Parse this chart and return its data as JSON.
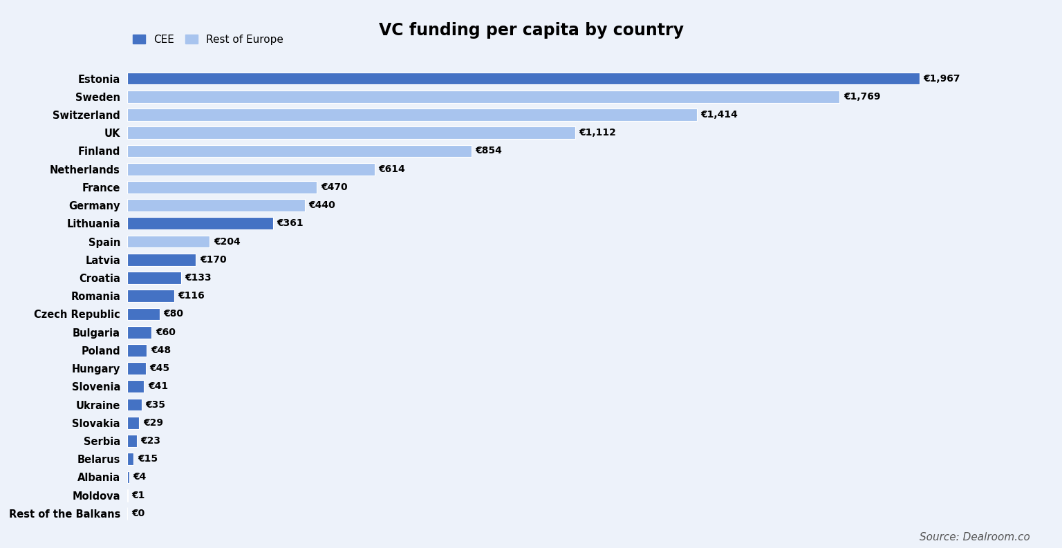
{
  "title": "VC funding per capita by country",
  "source": "Source: Dealroom.co",
  "legend_cee": "CEE",
  "legend_rest": "Rest of Europe",
  "color_cee": "#4472C4",
  "color_rest": "#A8C4EE",
  "background_color": "#EDF2FA",
  "countries": [
    "Estonia",
    "Sweden",
    "Switzerland",
    "UK",
    "Finland",
    "Netherlands",
    "France",
    "Germany",
    "Lithuania",
    "Spain",
    "Latvia",
    "Croatia",
    "Romania",
    "Czech Republic",
    "Bulgaria",
    "Poland",
    "Hungary",
    "Slovenia",
    "Ukraine",
    "Slovakia",
    "Serbia",
    "Belarus",
    "Albania",
    "Moldova",
    "Rest of the Balkans"
  ],
  "values": [
    1967,
    1769,
    1414,
    1112,
    854,
    614,
    470,
    440,
    361,
    204,
    170,
    133,
    116,
    80,
    60,
    48,
    45,
    41,
    35,
    29,
    23,
    15,
    4,
    1,
    0
  ],
  "is_cee": [
    true,
    false,
    false,
    false,
    false,
    false,
    false,
    false,
    true,
    false,
    true,
    true,
    true,
    true,
    true,
    true,
    true,
    true,
    true,
    true,
    true,
    true,
    true,
    true,
    true
  ],
  "labels": [
    "€1,967",
    "€1,769",
    "€1,414",
    "€1,112",
    "€854",
    "€614",
    "€470",
    "€440",
    "€361",
    "€204",
    "€170",
    "€133",
    "€116",
    "€80",
    "€60",
    "€48",
    "€45",
    "€41",
    "€35",
    "€29",
    "€23",
    "€15",
    "€4",
    "€1",
    "€0"
  ]
}
